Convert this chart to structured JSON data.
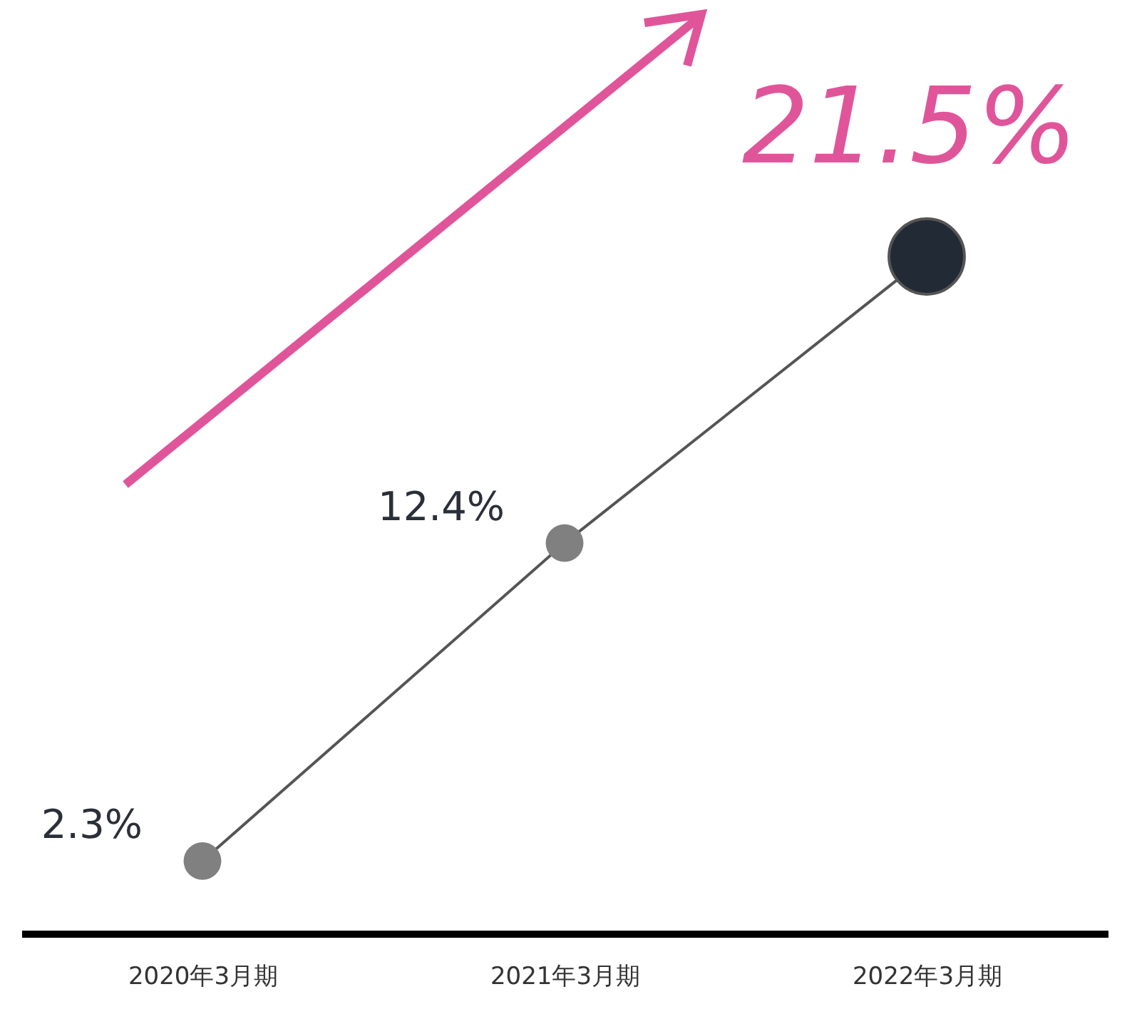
{
  "chart_data": {
    "type": "line",
    "categories": [
      "2020年3月期",
      "2021年3月期",
      "2022年3月期"
    ],
    "series": [
      {
        "color": "#555555",
        "values": [
          2.3,
          12.4,
          21.5
        ],
        "marker": "none"
      },
      {
        "type": "bubble",
        "colors": [
          "#808080",
          "#808080",
          "#222a35"
        ],
        "values": [
          2.3,
          12.4,
          21.5
        ],
        "sizes": [
          0.25,
          0.25,
          1
        ],
        "marker": "circle",
        "value_labels": [
          "2.3%",
          "12.4%",
          "21.5%"
        ]
      }
    ],
    "line_style": "solid",
    "grid": false
  }
}
